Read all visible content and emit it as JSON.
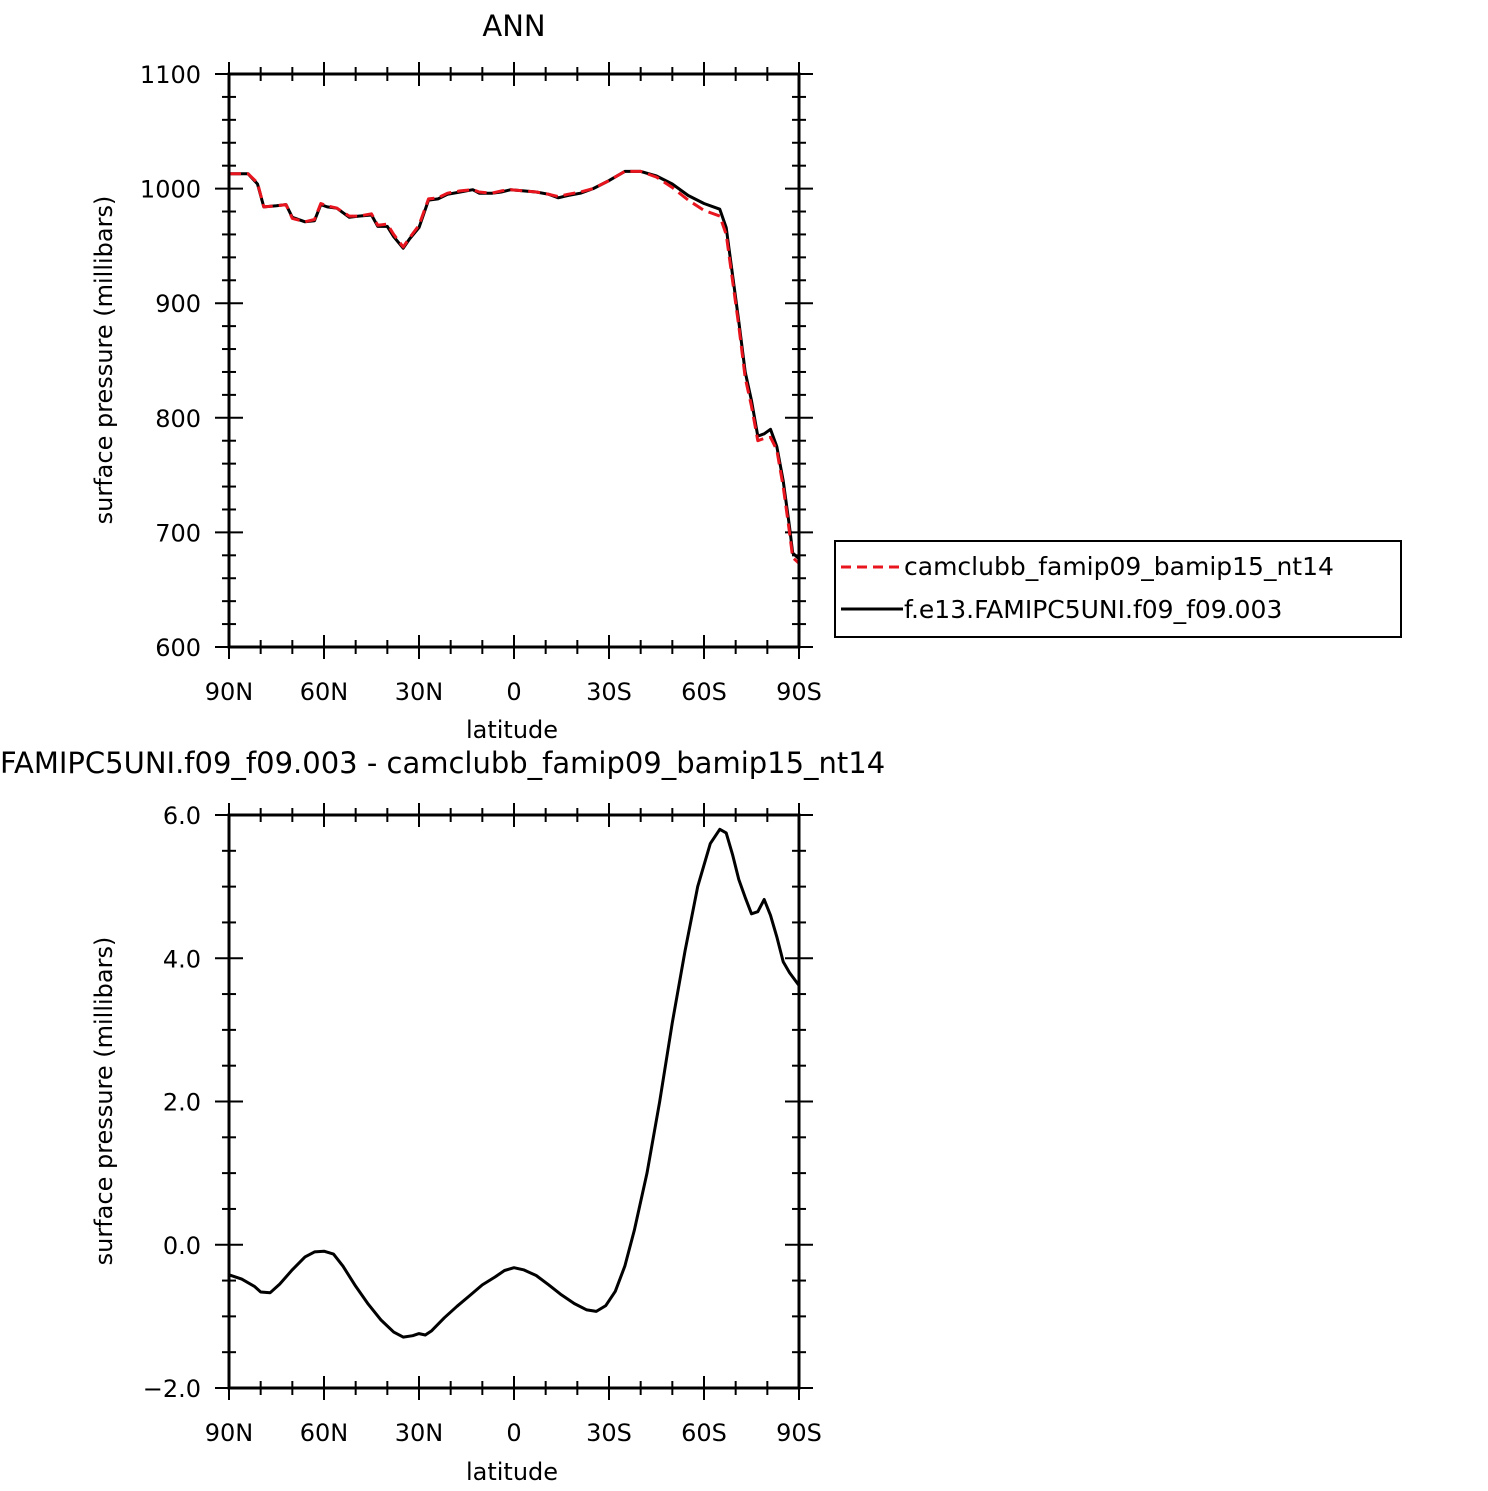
{
  "chart_data": [
    {
      "type": "line",
      "title": "ANN",
      "xlabel": "latitude",
      "ylabel": "surface pressure (millibars)",
      "ylim": [
        600,
        1100
      ],
      "xlim": [
        -90,
        90
      ],
      "xaxis_note": "x values: degrees latitude, -90 = 90N, +90 = 90S",
      "xticks": [
        {
          "value": -90,
          "label": "90N"
        },
        {
          "value": -60,
          "label": "60N"
        },
        {
          "value": -30,
          "label": "30N"
        },
        {
          "value": 0,
          "label": "0"
        },
        {
          "value": 30,
          "label": "30S"
        },
        {
          "value": 60,
          "label": "60S"
        },
        {
          "value": 90,
          "label": "90S"
        }
      ],
      "yticks": [
        {
          "value": 600,
          "label": "600"
        },
        {
          "value": 700,
          "label": "700"
        },
        {
          "value": 800,
          "label": "800"
        },
        {
          "value": 900,
          "label": "900"
        },
        {
          "value": 1000,
          "label": "1000"
        },
        {
          "value": 1100,
          "label": "1100"
        }
      ],
      "grid": false,
      "legend_position": "right-middle",
      "series": [
        {
          "name": "camclubb_famip09_bamip15_nt14",
          "color": "#e8141e",
          "dash": "dashed",
          "x": [
            -90,
            -84,
            -81,
            -79,
            -75,
            -72,
            -70,
            -66,
            -63,
            -61,
            -59,
            -56,
            -52,
            -49,
            -45,
            -43,
            -40,
            -38,
            -35,
            -33,
            -30,
            -27,
            -24,
            -21,
            -17,
            -13,
            -11,
            -7,
            -4,
            -1,
            3,
            7,
            11,
            14,
            17,
            21,
            25,
            30,
            35,
            40,
            45,
            50,
            55,
            60,
            65,
            67,
            69,
            71,
            73,
            75,
            77,
            79,
            81,
            83,
            85,
            87,
            88,
            90
          ],
          "y": [
            1013,
            1013,
            1005,
            984,
            985,
            986,
            974,
            971,
            973,
            987,
            985,
            983,
            976,
            976,
            978,
            968,
            969,
            960,
            949,
            957,
            968,
            991,
            992,
            996,
            998,
            999,
            997,
            996,
            998,
            999,
            998,
            997,
            995,
            993,
            995,
            997,
            1000,
            1007,
            1015,
            1015,
            1010,
            1001,
            990,
            981,
            976,
            960,
            920,
            880,
            835,
            810,
            780,
            782,
            783,
            772,
            740,
            700,
            678,
            673
          ]
        },
        {
          "name": "f.e13.FAMIPC5UNI.f09_f09.003",
          "color": "#000000",
          "dash": "solid",
          "x": [
            -90,
            -84,
            -81,
            -79,
            -75,
            -72,
            -70,
            -66,
            -63,
            -61,
            -59,
            -56,
            -52,
            -49,
            -45,
            -43,
            -40,
            -38,
            -35,
            -33,
            -30,
            -27,
            -24,
            -21,
            -17,
            -13,
            -11,
            -7,
            -4,
            -1,
            3,
            7,
            11,
            14,
            17,
            21,
            25,
            30,
            35,
            40,
            45,
            50,
            55,
            60,
            65,
            67,
            69,
            71,
            73,
            75,
            77,
            79,
            81,
            83,
            85,
            87,
            88,
            90
          ],
          "y": [
            1013,
            1013,
            1004,
            984,
            985,
            986,
            975,
            971,
            972,
            986,
            984,
            983,
            975,
            976,
            977,
            967,
            967,
            958,
            948,
            956,
            966,
            990,
            991,
            995,
            997,
            999,
            996,
            996,
            997,
            999,
            998,
            997,
            995,
            992,
            994,
            996,
            1000,
            1007,
            1015,
            1015,
            1011,
            1004,
            994,
            987,
            982,
            966,
            925,
            884,
            840,
            815,
            784,
            786,
            790,
            775,
            745,
            705,
            682,
            677
          ]
        }
      ]
    },
    {
      "type": "line",
      "title": "FAMIPC5UNI.f09_f09.003 - camclubb_famip09_bamip15_nt14",
      "xlabel": "latitude",
      "ylabel": "surface pressure (millibars)",
      "ylim": [
        -2.0,
        6.0
      ],
      "xlim": [
        -90,
        90
      ],
      "xticks": [
        {
          "value": -90,
          "label": "90N"
        },
        {
          "value": -60,
          "label": "60N"
        },
        {
          "value": -30,
          "label": "30N"
        },
        {
          "value": 0,
          "label": "0"
        },
        {
          "value": 30,
          "label": "30S"
        },
        {
          "value": 60,
          "label": "60S"
        },
        {
          "value": 90,
          "label": "90S"
        }
      ],
      "yticks": [
        {
          "value": -2.0,
          "label": "−2.0"
        },
        {
          "value": 0.0,
          "label": "0.0"
        },
        {
          "value": 2.0,
          "label": "2.0"
        },
        {
          "value": 4.0,
          "label": "4.0"
        },
        {
          "value": 6.0,
          "label": "6.0"
        }
      ],
      "grid": false,
      "series": [
        {
          "color": "#000000",
          "dash": "solid",
          "x": [
            -90,
            -86,
            -82,
            -80,
            -77,
            -74,
            -70,
            -66,
            -63,
            -60,
            -57,
            -54,
            -50,
            -46,
            -42,
            -38,
            -35,
            -32,
            -30,
            -28,
            -26,
            -22,
            -18,
            -14,
            -10,
            -6,
            -3,
            0,
            3,
            7,
            11,
            15,
            19,
            23,
            26,
            29,
            32,
            35,
            38,
            42,
            46,
            50,
            54,
            58,
            62,
            65,
            67,
            69,
            71,
            73,
            75,
            77,
            79,
            81,
            83,
            85,
            87,
            90
          ],
          "y": [
            -0.42,
            -0.48,
            -0.58,
            -0.66,
            -0.67,
            -0.55,
            -0.35,
            -0.17,
            -0.1,
            -0.09,
            -0.13,
            -0.3,
            -0.58,
            -0.83,
            -1.05,
            -1.22,
            -1.29,
            -1.27,
            -1.24,
            -1.26,
            -1.2,
            -1.02,
            -0.86,
            -0.71,
            -0.56,
            -0.45,
            -0.36,
            -0.32,
            -0.35,
            -0.43,
            -0.56,
            -0.7,
            -0.82,
            -0.91,
            -0.93,
            -0.85,
            -0.65,
            -0.3,
            0.2,
            1.0,
            2.0,
            3.1,
            4.1,
            5.0,
            5.6,
            5.8,
            5.75,
            5.45,
            5.1,
            4.85,
            4.62,
            4.65,
            4.82,
            4.6,
            4.3,
            3.95,
            3.8,
            3.62
          ]
        }
      ]
    }
  ]
}
